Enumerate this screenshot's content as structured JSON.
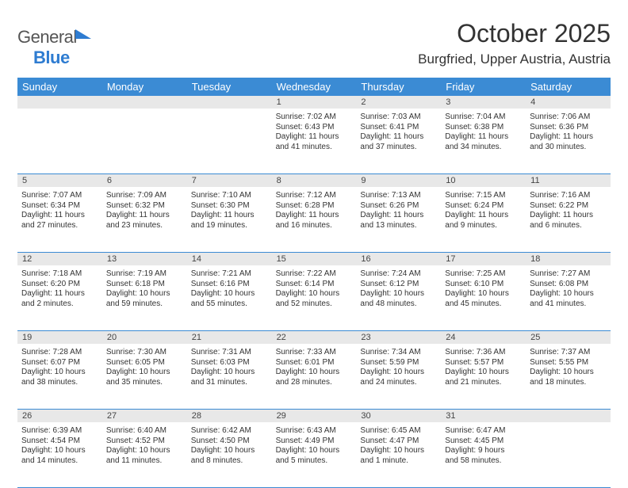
{
  "logo": {
    "general": "General",
    "blue": "Blue"
  },
  "title": "October 2025",
  "location": "Burgfried, Upper Austria, Austria",
  "colors": {
    "header_bg": "#3b8bd4",
    "header_text": "#ffffff",
    "daynum_bg": "#e8e8e8",
    "rule": "#3b8bd4",
    "text": "#333333",
    "logo_blue": "#2e7cd1"
  },
  "font": {
    "title_pt": 32,
    "location_pt": 17,
    "dayheader_pt": 13,
    "cell_pt": 10
  },
  "dayHeaders": [
    "Sunday",
    "Monday",
    "Tuesday",
    "Wednesday",
    "Thursday",
    "Friday",
    "Saturday"
  ],
  "weeks": [
    [
      {
        "day": "",
        "sunrise": "",
        "sunset": "",
        "daylight1": "",
        "daylight2": ""
      },
      {
        "day": "",
        "sunrise": "",
        "sunset": "",
        "daylight1": "",
        "daylight2": ""
      },
      {
        "day": "",
        "sunrise": "",
        "sunset": "",
        "daylight1": "",
        "daylight2": ""
      },
      {
        "day": "1",
        "sunrise": "Sunrise: 7:02 AM",
        "sunset": "Sunset: 6:43 PM",
        "daylight1": "Daylight: 11 hours",
        "daylight2": "and 41 minutes."
      },
      {
        "day": "2",
        "sunrise": "Sunrise: 7:03 AM",
        "sunset": "Sunset: 6:41 PM",
        "daylight1": "Daylight: 11 hours",
        "daylight2": "and 37 minutes."
      },
      {
        "day": "3",
        "sunrise": "Sunrise: 7:04 AM",
        "sunset": "Sunset: 6:38 PM",
        "daylight1": "Daylight: 11 hours",
        "daylight2": "and 34 minutes."
      },
      {
        "day": "4",
        "sunrise": "Sunrise: 7:06 AM",
        "sunset": "Sunset: 6:36 PM",
        "daylight1": "Daylight: 11 hours",
        "daylight2": "and 30 minutes."
      }
    ],
    [
      {
        "day": "5",
        "sunrise": "Sunrise: 7:07 AM",
        "sunset": "Sunset: 6:34 PM",
        "daylight1": "Daylight: 11 hours",
        "daylight2": "and 27 minutes."
      },
      {
        "day": "6",
        "sunrise": "Sunrise: 7:09 AM",
        "sunset": "Sunset: 6:32 PM",
        "daylight1": "Daylight: 11 hours",
        "daylight2": "and 23 minutes."
      },
      {
        "day": "7",
        "sunrise": "Sunrise: 7:10 AM",
        "sunset": "Sunset: 6:30 PM",
        "daylight1": "Daylight: 11 hours",
        "daylight2": "and 19 minutes."
      },
      {
        "day": "8",
        "sunrise": "Sunrise: 7:12 AM",
        "sunset": "Sunset: 6:28 PM",
        "daylight1": "Daylight: 11 hours",
        "daylight2": "and 16 minutes."
      },
      {
        "day": "9",
        "sunrise": "Sunrise: 7:13 AM",
        "sunset": "Sunset: 6:26 PM",
        "daylight1": "Daylight: 11 hours",
        "daylight2": "and 13 minutes."
      },
      {
        "day": "10",
        "sunrise": "Sunrise: 7:15 AM",
        "sunset": "Sunset: 6:24 PM",
        "daylight1": "Daylight: 11 hours",
        "daylight2": "and 9 minutes."
      },
      {
        "day": "11",
        "sunrise": "Sunrise: 7:16 AM",
        "sunset": "Sunset: 6:22 PM",
        "daylight1": "Daylight: 11 hours",
        "daylight2": "and 6 minutes."
      }
    ],
    [
      {
        "day": "12",
        "sunrise": "Sunrise: 7:18 AM",
        "sunset": "Sunset: 6:20 PM",
        "daylight1": "Daylight: 11 hours",
        "daylight2": "and 2 minutes."
      },
      {
        "day": "13",
        "sunrise": "Sunrise: 7:19 AM",
        "sunset": "Sunset: 6:18 PM",
        "daylight1": "Daylight: 10 hours",
        "daylight2": "and 59 minutes."
      },
      {
        "day": "14",
        "sunrise": "Sunrise: 7:21 AM",
        "sunset": "Sunset: 6:16 PM",
        "daylight1": "Daylight: 10 hours",
        "daylight2": "and 55 minutes."
      },
      {
        "day": "15",
        "sunrise": "Sunrise: 7:22 AM",
        "sunset": "Sunset: 6:14 PM",
        "daylight1": "Daylight: 10 hours",
        "daylight2": "and 52 minutes."
      },
      {
        "day": "16",
        "sunrise": "Sunrise: 7:24 AM",
        "sunset": "Sunset: 6:12 PM",
        "daylight1": "Daylight: 10 hours",
        "daylight2": "and 48 minutes."
      },
      {
        "day": "17",
        "sunrise": "Sunrise: 7:25 AM",
        "sunset": "Sunset: 6:10 PM",
        "daylight1": "Daylight: 10 hours",
        "daylight2": "and 45 minutes."
      },
      {
        "day": "18",
        "sunrise": "Sunrise: 7:27 AM",
        "sunset": "Sunset: 6:08 PM",
        "daylight1": "Daylight: 10 hours",
        "daylight2": "and 41 minutes."
      }
    ],
    [
      {
        "day": "19",
        "sunrise": "Sunrise: 7:28 AM",
        "sunset": "Sunset: 6:07 PM",
        "daylight1": "Daylight: 10 hours",
        "daylight2": "and 38 minutes."
      },
      {
        "day": "20",
        "sunrise": "Sunrise: 7:30 AM",
        "sunset": "Sunset: 6:05 PM",
        "daylight1": "Daylight: 10 hours",
        "daylight2": "and 35 minutes."
      },
      {
        "day": "21",
        "sunrise": "Sunrise: 7:31 AM",
        "sunset": "Sunset: 6:03 PM",
        "daylight1": "Daylight: 10 hours",
        "daylight2": "and 31 minutes."
      },
      {
        "day": "22",
        "sunrise": "Sunrise: 7:33 AM",
        "sunset": "Sunset: 6:01 PM",
        "daylight1": "Daylight: 10 hours",
        "daylight2": "and 28 minutes."
      },
      {
        "day": "23",
        "sunrise": "Sunrise: 7:34 AM",
        "sunset": "Sunset: 5:59 PM",
        "daylight1": "Daylight: 10 hours",
        "daylight2": "and 24 minutes."
      },
      {
        "day": "24",
        "sunrise": "Sunrise: 7:36 AM",
        "sunset": "Sunset: 5:57 PM",
        "daylight1": "Daylight: 10 hours",
        "daylight2": "and 21 minutes."
      },
      {
        "day": "25",
        "sunrise": "Sunrise: 7:37 AM",
        "sunset": "Sunset: 5:55 PM",
        "daylight1": "Daylight: 10 hours",
        "daylight2": "and 18 minutes."
      }
    ],
    [
      {
        "day": "26",
        "sunrise": "Sunrise: 6:39 AM",
        "sunset": "Sunset: 4:54 PM",
        "daylight1": "Daylight: 10 hours",
        "daylight2": "and 14 minutes."
      },
      {
        "day": "27",
        "sunrise": "Sunrise: 6:40 AM",
        "sunset": "Sunset: 4:52 PM",
        "daylight1": "Daylight: 10 hours",
        "daylight2": "and 11 minutes."
      },
      {
        "day": "28",
        "sunrise": "Sunrise: 6:42 AM",
        "sunset": "Sunset: 4:50 PM",
        "daylight1": "Daylight: 10 hours",
        "daylight2": "and 8 minutes."
      },
      {
        "day": "29",
        "sunrise": "Sunrise: 6:43 AM",
        "sunset": "Sunset: 4:49 PM",
        "daylight1": "Daylight: 10 hours",
        "daylight2": "and 5 minutes."
      },
      {
        "day": "30",
        "sunrise": "Sunrise: 6:45 AM",
        "sunset": "Sunset: 4:47 PM",
        "daylight1": "Daylight: 10 hours",
        "daylight2": "and 1 minute."
      },
      {
        "day": "31",
        "sunrise": "Sunrise: 6:47 AM",
        "sunset": "Sunset: 4:45 PM",
        "daylight1": "Daylight: 9 hours",
        "daylight2": "and 58 minutes."
      },
      {
        "day": "",
        "sunrise": "",
        "sunset": "",
        "daylight1": "",
        "daylight2": ""
      }
    ]
  ]
}
